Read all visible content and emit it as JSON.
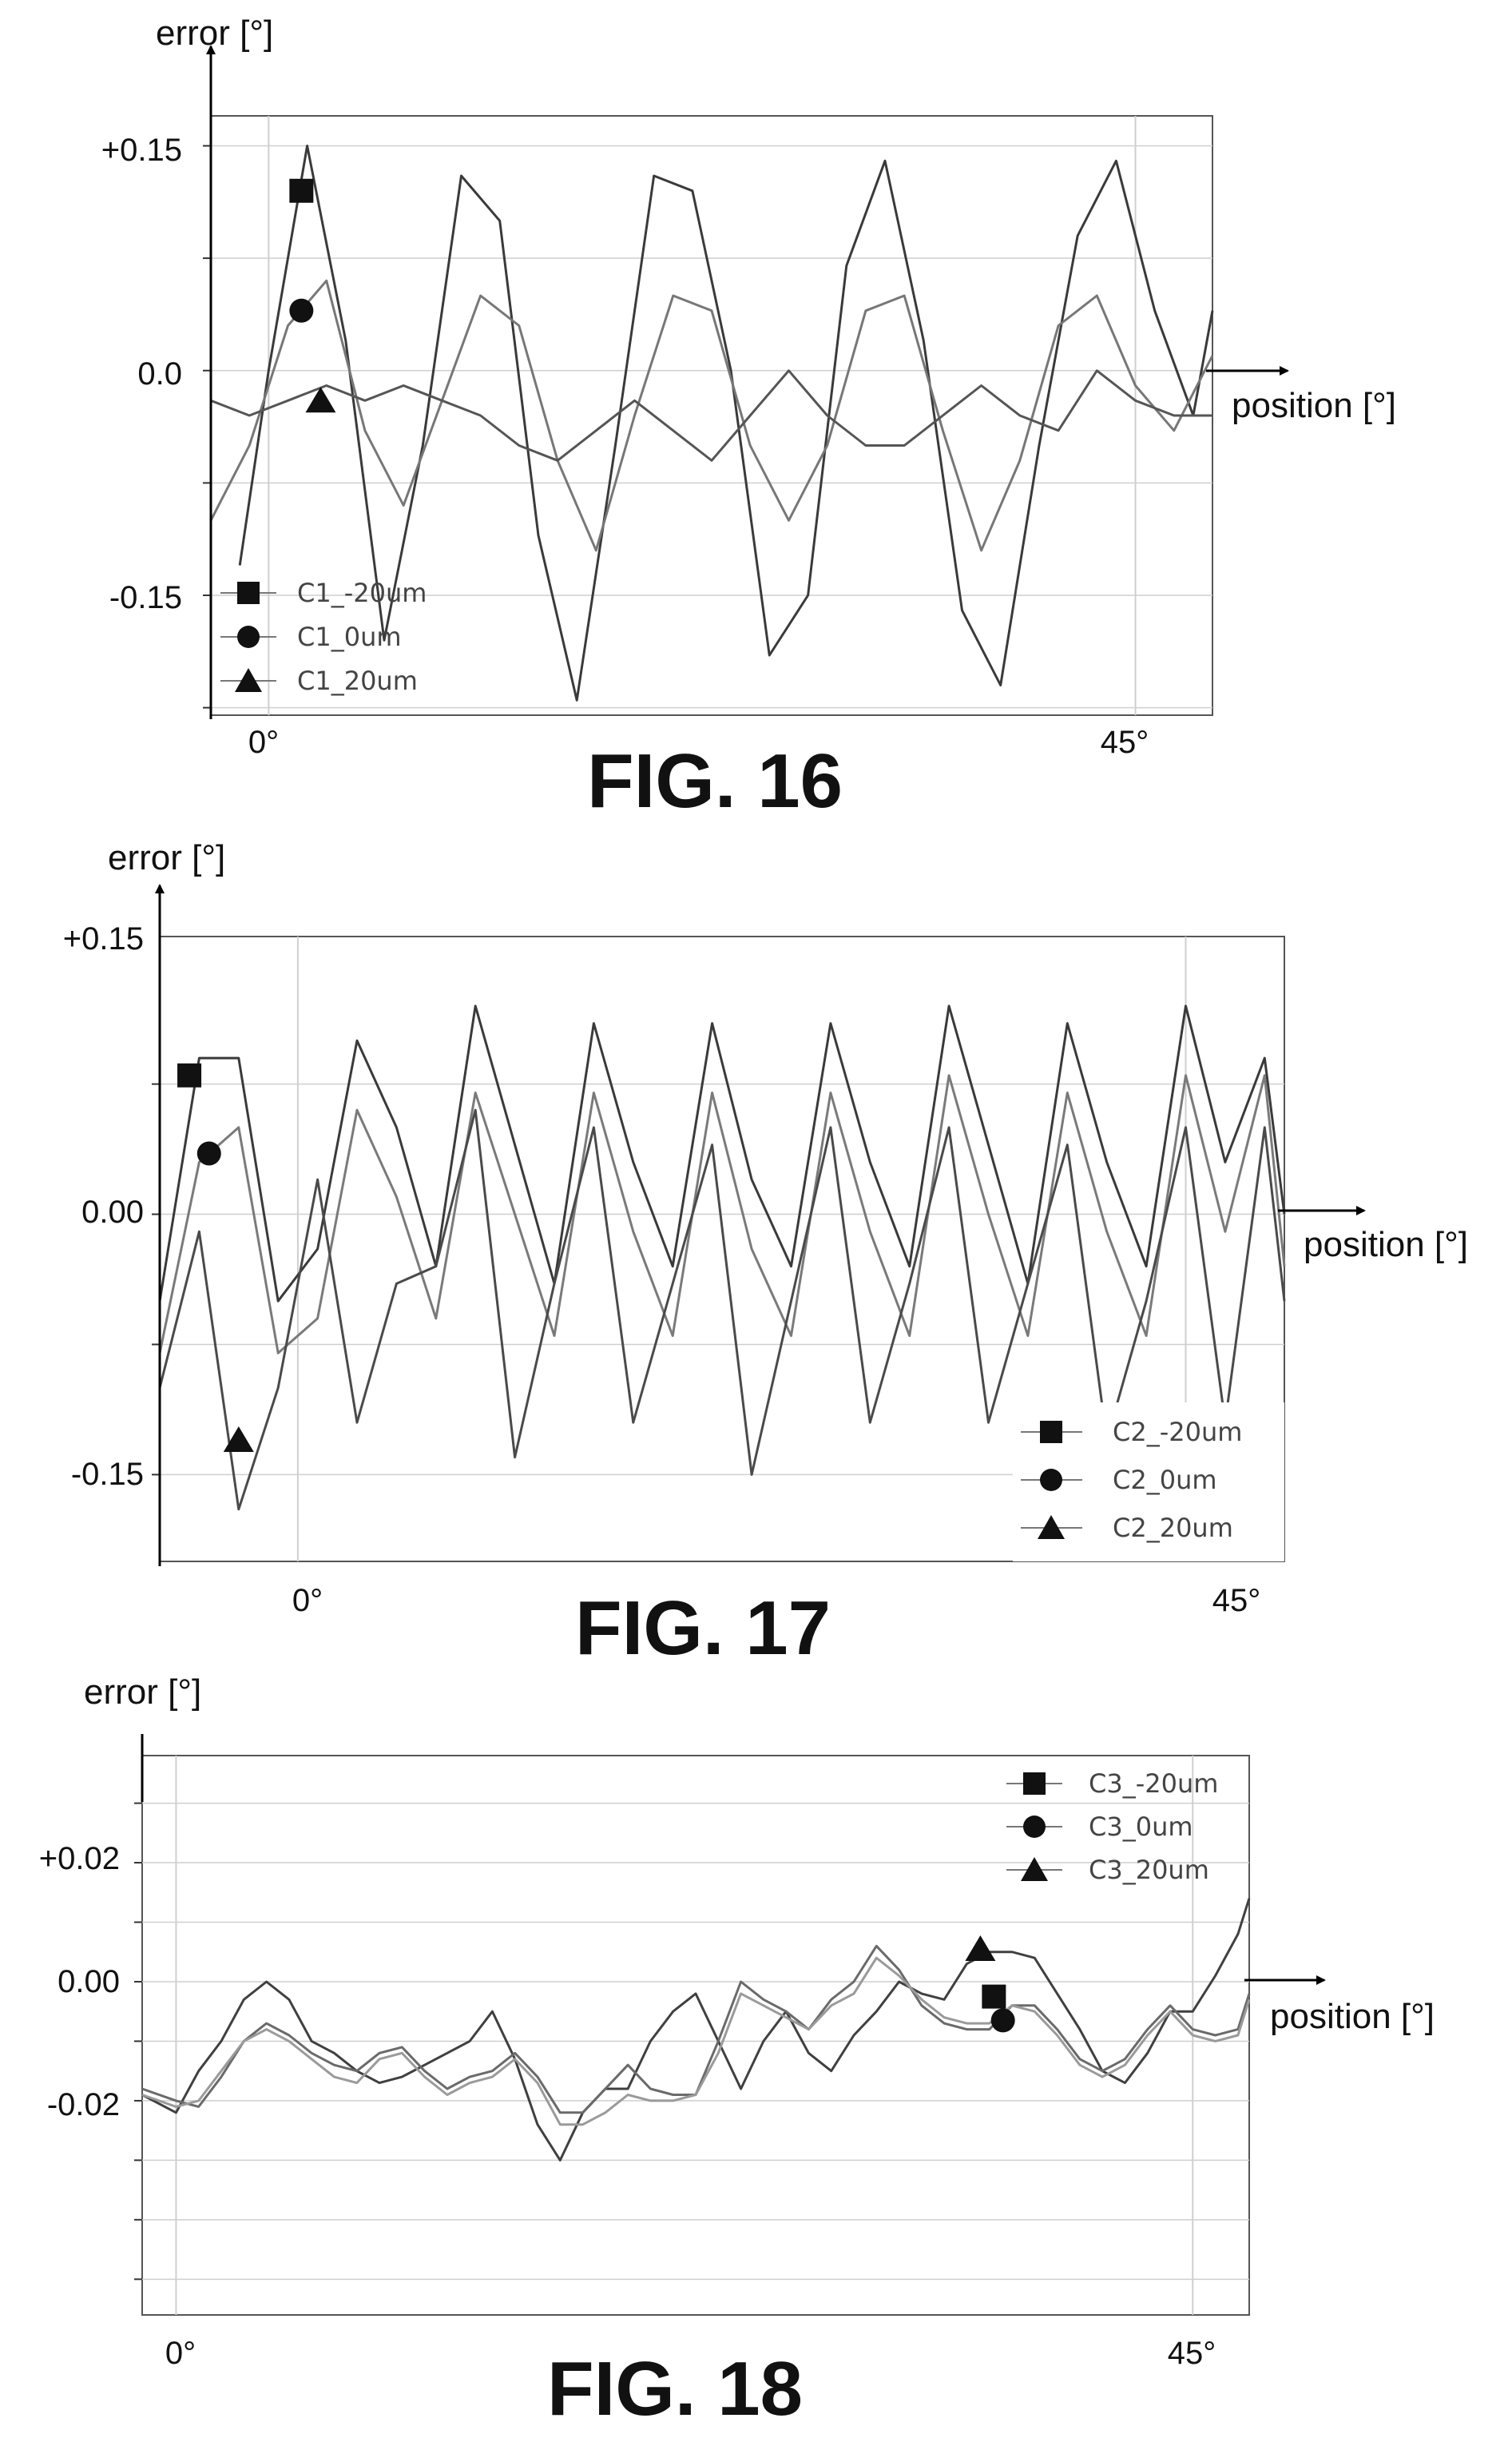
{
  "chart_data": [
    {
      "type": "line",
      "figure_label": "FIG. 16",
      "ylabel": "error [°]",
      "xlabel": "position [°]",
      "x_ticks": [
        "0°",
        "45°"
      ],
      "y_ticks": [
        "+0.15",
        "0.0",
        "-0.15"
      ],
      "y_tick_values": [
        0.15,
        0.0,
        -0.15
      ],
      "xlim": [
        -3,
        49
      ],
      "ylim": [
        -0.23,
        0.17
      ],
      "grid": true,
      "legend_position": "bottom-left",
      "series": [
        {
          "name": "C1_-20um",
          "marker": "square",
          "marker_pos": [
            1.7,
            0.12
          ],
          "x": [
            -1.5,
            0,
            2,
            4,
            6,
            8,
            10,
            12,
            14,
            16,
            18,
            20,
            22,
            24,
            26,
            28,
            30,
            32,
            34,
            36,
            38,
            40,
            42,
            44,
            46,
            48,
            49
          ],
          "y": [
            -0.13,
            0.0,
            0.15,
            0.02,
            -0.18,
            -0.05,
            0.13,
            0.1,
            -0.11,
            -0.22,
            -0.05,
            0.13,
            0.12,
            0.0,
            -0.19,
            -0.15,
            0.07,
            0.14,
            0.02,
            -0.16,
            -0.21,
            -0.05,
            0.09,
            0.14,
            0.04,
            -0.03,
            0.04
          ]
        },
        {
          "name": "C1_0um",
          "marker": "circle",
          "marker_pos": [
            1.7,
            0.04
          ],
          "x": [
            -3,
            -1,
            1,
            3,
            5,
            7,
            9,
            11,
            13,
            15,
            17,
            19,
            21,
            23,
            25,
            27,
            29,
            31,
            33,
            35,
            37,
            39,
            41,
            43,
            45,
            47,
            49
          ],
          "y": [
            -0.1,
            -0.05,
            0.03,
            0.06,
            -0.04,
            -0.09,
            -0.02,
            0.05,
            0.03,
            -0.06,
            -0.12,
            -0.03,
            0.05,
            0.04,
            -0.05,
            -0.1,
            -0.05,
            0.04,
            0.05,
            -0.04,
            -0.12,
            -0.06,
            0.03,
            0.05,
            -0.01,
            -0.04,
            0.01
          ]
        },
        {
          "name": "C1_20um",
          "marker": "triangle",
          "marker_pos": [
            2.7,
            -0.02
          ],
          "x": [
            -3,
            -1,
            1,
            3,
            5,
            7,
            9,
            11,
            13,
            15,
            17,
            19,
            21,
            23,
            25,
            27,
            29,
            31,
            33,
            35,
            37,
            39,
            41,
            43,
            45,
            47,
            49
          ],
          "y": [
            -0.02,
            -0.03,
            -0.02,
            -0.01,
            -0.02,
            -0.01,
            -0.02,
            -0.03,
            -0.05,
            -0.06,
            -0.04,
            -0.02,
            -0.04,
            -0.06,
            -0.03,
            0.0,
            -0.03,
            -0.05,
            -0.05,
            -0.03,
            -0.01,
            -0.03,
            -0.04,
            0.0,
            -0.02,
            -0.03,
            -0.03
          ]
        }
      ]
    },
    {
      "type": "line",
      "figure_label": "FIG. 17",
      "ylabel": "error [°]",
      "xlabel": "position [°]",
      "x_ticks": [
        "0°",
        "45°"
      ],
      "y_ticks": [
        "+0.15",
        "0.00",
        "-0.15"
      ],
      "y_tick_values": [
        0.15,
        0.0,
        -0.15
      ],
      "xlim": [
        -7,
        50
      ],
      "ylim": [
        -0.2,
        0.16
      ],
      "grid": true,
      "legend_position": "bottom-right",
      "series": [
        {
          "name": "C2_-20um",
          "marker": "square",
          "marker_pos": [
            -5.5,
            0.08
          ],
          "x": [
            -7,
            -5,
            -3,
            -1,
            1,
            3,
            5,
            7,
            9,
            11,
            13,
            15,
            17,
            19,
            21,
            23,
            25,
            27,
            29,
            31,
            33,
            35,
            37,
            39,
            41,
            43,
            45,
            47,
            49,
            50
          ],
          "y": [
            -0.05,
            0.09,
            0.09,
            -0.05,
            -0.02,
            0.1,
            0.05,
            -0.03,
            0.12,
            0.04,
            -0.04,
            0.11,
            0.03,
            -0.03,
            0.11,
            0.02,
            -0.03,
            0.11,
            0.03,
            -0.03,
            0.12,
            0.04,
            -0.04,
            0.11,
            0.03,
            -0.03,
            0.12,
            0.03,
            0.09,
            0.0
          ]
        },
        {
          "name": "C2_0um",
          "marker": "circle",
          "marker_pos": [
            -4.5,
            0.035
          ],
          "x": [
            -7,
            -5,
            -3,
            -1,
            1,
            3,
            5,
            7,
            9,
            11,
            13,
            15,
            17,
            19,
            21,
            23,
            25,
            27,
            29,
            31,
            33,
            35,
            37,
            39,
            41,
            43,
            45,
            47,
            49,
            50
          ],
          "y": [
            -0.08,
            0.03,
            0.05,
            -0.08,
            -0.06,
            0.06,
            0.01,
            -0.06,
            0.07,
            0.0,
            -0.07,
            0.07,
            -0.01,
            -0.07,
            0.07,
            -0.02,
            -0.07,
            0.07,
            -0.01,
            -0.07,
            0.08,
            0.0,
            -0.07,
            0.07,
            -0.01,
            -0.07,
            0.08,
            -0.01,
            0.08,
            -0.03
          ]
        },
        {
          "name": "C2_20um",
          "marker": "triangle",
          "marker_pos": [
            -3,
            -0.13
          ],
          "x": [
            -7,
            -5,
            -3,
            -1,
            1,
            3,
            5,
            7,
            9,
            11,
            13,
            15,
            17,
            19,
            21,
            23,
            25,
            27,
            29,
            31,
            33,
            35,
            37,
            39,
            41,
            43,
            45,
            47,
            49,
            50
          ],
          "y": [
            -0.1,
            -0.01,
            -0.17,
            -0.1,
            0.02,
            -0.12,
            -0.04,
            -0.03,
            0.06,
            -0.14,
            -0.04,
            0.05,
            -0.12,
            -0.04,
            0.04,
            -0.15,
            -0.05,
            0.05,
            -0.12,
            -0.04,
            0.05,
            -0.12,
            -0.04,
            0.04,
            -0.13,
            -0.05,
            0.05,
            -0.12,
            0.05,
            -0.05
          ]
        }
      ]
    },
    {
      "type": "line",
      "figure_label": "FIG. 18",
      "ylabel": "error [°]",
      "xlabel": "position [°]",
      "x_ticks": [
        "0°",
        "45°"
      ],
      "y_ticks": [
        "+0.02",
        "0.00",
        "-0.02"
      ],
      "y_tick_values": [
        0.02,
        0.0,
        -0.02
      ],
      "xlim": [
        -1.5,
        47.5
      ],
      "ylim": [
        -0.056,
        0.038
      ],
      "grid": true,
      "legend_position": "top-right",
      "series": [
        {
          "name": "C3_-20um",
          "marker": "square",
          "marker_pos": [
            36.2,
            -0.0025
          ],
          "x": [
            -1.5,
            0,
            1,
            2,
            3,
            4,
            5,
            6,
            7,
            8,
            9,
            10,
            11,
            12,
            13,
            14,
            15,
            16,
            17,
            18,
            19,
            20,
            21,
            22,
            23,
            24,
            25,
            26,
            27,
            28,
            29,
            30,
            31,
            32,
            33,
            34,
            35,
            36,
            37,
            38,
            39,
            40,
            41,
            42,
            43,
            44,
            45,
            46,
            47,
            47.5
          ],
          "y": [
            -0.019,
            -0.022,
            -0.015,
            -0.01,
            -0.003,
            0.0,
            -0.003,
            -0.01,
            -0.012,
            -0.015,
            -0.017,
            -0.016,
            -0.014,
            -0.012,
            -0.01,
            -0.005,
            -0.013,
            -0.024,
            -0.03,
            -0.022,
            -0.018,
            -0.018,
            -0.01,
            -0.005,
            -0.002,
            -0.01,
            -0.018,
            -0.01,
            -0.005,
            -0.012,
            -0.015,
            -0.009,
            -0.005,
            0.0,
            -0.002,
            -0.003,
            0.003,
            0.005,
            0.005,
            0.004,
            -0.002,
            -0.008,
            -0.015,
            -0.017,
            -0.012,
            -0.005,
            -0.005,
            0.001,
            0.008,
            0.014
          ]
        },
        {
          "name": "C3_0um",
          "marker": "circle",
          "marker_pos": [
            36.6,
            -0.0065
          ],
          "x": [
            -1.5,
            0,
            1,
            2,
            3,
            4,
            5,
            6,
            7,
            8,
            9,
            10,
            11,
            12,
            13,
            14,
            15,
            16,
            17,
            18,
            19,
            20,
            21,
            22,
            23,
            24,
            25,
            26,
            27,
            28,
            29,
            30,
            31,
            32,
            33,
            34,
            35,
            36,
            37,
            38,
            39,
            40,
            41,
            42,
            43,
            44,
            45,
            46,
            47,
            47.5
          ],
          "y": [
            -0.018,
            -0.02,
            -0.021,
            -0.016,
            -0.01,
            -0.007,
            -0.009,
            -0.012,
            -0.014,
            -0.015,
            -0.012,
            -0.011,
            -0.015,
            -0.018,
            -0.016,
            -0.015,
            -0.012,
            -0.016,
            -0.022,
            -0.022,
            -0.018,
            -0.014,
            -0.018,
            -0.019,
            -0.019,
            -0.01,
            0.0,
            -0.003,
            -0.005,
            -0.008,
            -0.003,
            0.0,
            0.006,
            0.002,
            -0.004,
            -0.007,
            -0.008,
            -0.008,
            -0.004,
            -0.004,
            -0.008,
            -0.013,
            -0.015,
            -0.013,
            -0.008,
            -0.004,
            -0.008,
            -0.009,
            -0.008,
            -0.002
          ]
        },
        {
          "name": "C3_20um",
          "marker": "triangle",
          "marker_pos": [
            35.6,
            0.0055
          ],
          "x": [
            -1.5,
            0,
            1,
            2,
            3,
            4,
            5,
            6,
            7,
            8,
            9,
            10,
            11,
            12,
            13,
            14,
            15,
            16,
            17,
            18,
            19,
            20,
            21,
            22,
            23,
            24,
            25,
            26,
            27,
            28,
            29,
            30,
            31,
            32,
            33,
            34,
            35,
            36,
            37,
            38,
            39,
            40,
            41,
            42,
            43,
            44,
            45,
            46,
            47,
            47.5
          ],
          "y": [
            -0.019,
            -0.021,
            -0.02,
            -0.015,
            -0.01,
            -0.008,
            -0.01,
            -0.013,
            -0.016,
            -0.017,
            -0.013,
            -0.012,
            -0.016,
            -0.019,
            -0.017,
            -0.016,
            -0.013,
            -0.017,
            -0.024,
            -0.024,
            -0.022,
            -0.019,
            -0.02,
            -0.02,
            -0.019,
            -0.012,
            -0.002,
            -0.004,
            -0.006,
            -0.008,
            -0.004,
            -0.002,
            0.004,
            0.001,
            -0.003,
            -0.006,
            -0.007,
            -0.007,
            -0.004,
            -0.005,
            -0.009,
            -0.014,
            -0.016,
            -0.014,
            -0.009,
            -0.005,
            -0.009,
            -0.01,
            -0.009,
            -0.003
          ]
        }
      ]
    }
  ]
}
